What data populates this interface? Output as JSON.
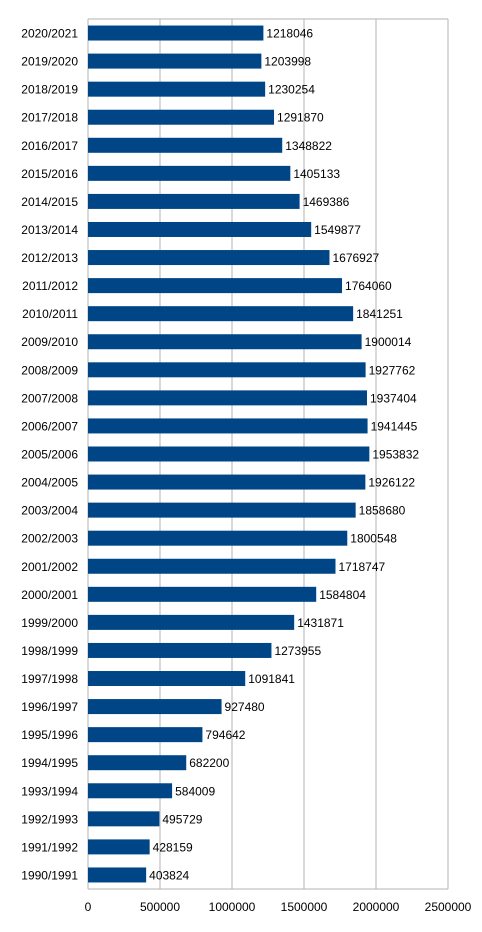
{
  "chart_data": {
    "type": "bar",
    "orientation": "horizontal",
    "categories": [
      "2020/2021",
      "2019/2020",
      "2018/2019",
      "2017/2018",
      "2016/2017",
      "2015/2016",
      "2014/2015",
      "2013/2014",
      "2012/2013",
      "2011/2012",
      "2010/2011",
      "2009/2010",
      "2008/2009",
      "2007/2008",
      "2006/2007",
      "2005/2006",
      "2004/2005",
      "2003/2004",
      "2002/2003",
      "2001/2002",
      "2000/2001",
      "1999/2000",
      "1998/1999",
      "1997/1998",
      "1996/1997",
      "1995/1996",
      "1994/1995",
      "1993/1994",
      "1992/1993",
      "1991/1992",
      "1990/1991"
    ],
    "values": [
      1218046,
      1203998,
      1230254,
      1291870,
      1348822,
      1405133,
      1469386,
      1549877,
      1676927,
      1764060,
      1841251,
      1900014,
      1927762,
      1937404,
      1941445,
      1953832,
      1926122,
      1858680,
      1800548,
      1718747,
      1584804,
      1431871,
      1273955,
      1091841,
      927480,
      794642,
      682200,
      584009,
      495729,
      428159,
      403824
    ],
    "xlim": [
      0,
      2500000
    ],
    "xticks": [
      "0",
      "500000",
      "1000000",
      "1500000",
      "2000000",
      "2500000"
    ],
    "title": "",
    "xlabel": "",
    "ylabel": "",
    "grid": "vertical",
    "legend": "none",
    "bar_color": "#004586",
    "data_labels": true
  }
}
